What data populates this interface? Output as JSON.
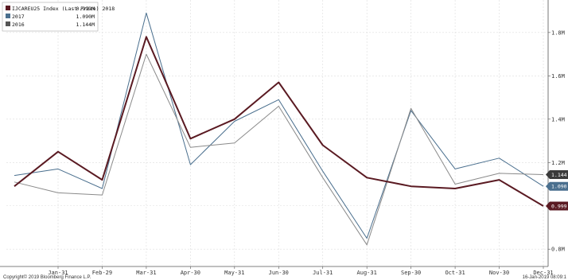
{
  "chart_data": {
    "type": "line",
    "categories": [
      "Jan-31",
      "Feb-29",
      "Mar-31",
      "Apr-30",
      "May-31",
      "Jun-30",
      "Jul-31",
      "Aug-31",
      "Sep-30",
      "Oct-31",
      "Nov-30",
      "Dec-31"
    ],
    "ylim": [
      0.72,
      1.95
    ],
    "y_ticks": [
      {
        "value": 0.8,
        "label": "0.8M"
      },
      {
        "value": 1.0,
        "label": ""
      },
      {
        "value": 1.2,
        "label": "1.2M"
      },
      {
        "value": 1.4,
        "label": "1.4M"
      },
      {
        "value": 1.6,
        "label": "1.6M"
      },
      {
        "value": 1.8,
        "label": "1.8M"
      }
    ],
    "grid": true,
    "legend_position": "top-left",
    "series": [
      {
        "name": "IJCAREU25 Index (Last Price) 2018",
        "legend_value": "0.999M",
        "tag": "0.999",
        "color": "#5a1a22",
        "width": "thick",
        "start": 1.09,
        "values": [
          1.25,
          1.12,
          1.78,
          1.31,
          1.4,
          1.57,
          1.28,
          1.13,
          1.09,
          1.08,
          1.12,
          0.999
        ]
      },
      {
        "name": "2017",
        "legend_value": "1.090M",
        "tag": "1.090",
        "color": "#4a6f8e",
        "width": "thin",
        "start": 1.14,
        "values": [
          1.17,
          1.08,
          1.89,
          1.19,
          1.39,
          1.49,
          1.16,
          0.85,
          1.44,
          1.17,
          1.22,
          1.09
        ]
      },
      {
        "name": "2016",
        "legend_value": "1.144M",
        "tag": "1.144",
        "color": "#8a8a8a",
        "width": "thin",
        "start": 1.11,
        "values": [
          1.06,
          1.05,
          1.7,
          1.27,
          1.29,
          1.46,
          1.13,
          0.82,
          1.45,
          1.1,
          1.15,
          1.144
        ]
      }
    ],
    "footer_left": "Copyright© 2019 Bloomberg Finance L.P.",
    "footer_right": "16-Jan-2019 08:09:1"
  }
}
